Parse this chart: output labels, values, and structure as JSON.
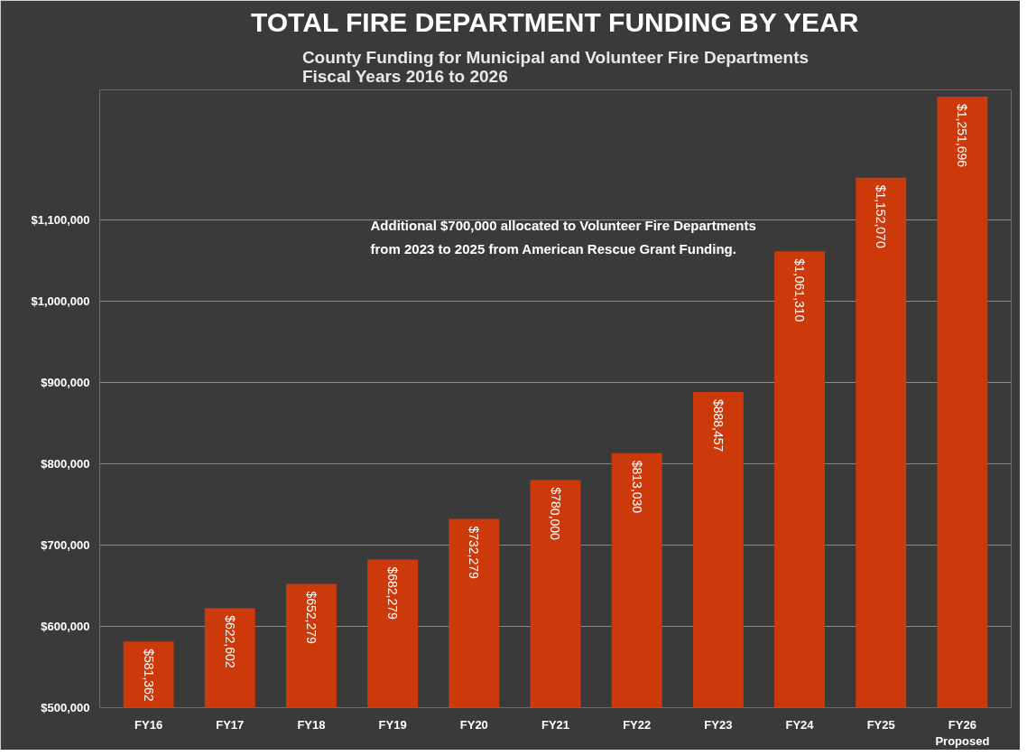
{
  "chart_data": {
    "type": "bar",
    "title": "TOTAL FIRE DEPARTMENT FUNDING BY YEAR",
    "subtitle": "County Funding for Municipal and Volunteer Fire Departments\nFiscal Years 2016 to 2026",
    "categories": [
      "FY16",
      "FY17",
      "FY18",
      "FY19",
      "FY20",
      "FY21",
      "FY22",
      "FY23",
      "FY24",
      "FY25",
      "FY26\nProposed"
    ],
    "values": [
      581362,
      622602,
      652279,
      682279,
      732279,
      780000,
      813030,
      888457,
      1061310,
      1152070,
      1251696
    ],
    "value_labels": [
      "$581,362",
      "$622,602",
      "$652,279",
      "$682,279",
      "$732,279",
      "$780,000",
      "$813,030",
      "$888,457",
      "$1,061,310",
      "$1,152,070",
      "$1,251,696"
    ],
    "color": "#cc3a0c",
    "ylim": [
      500000,
      1260000
    ],
    "yticks": [
      {
        "value": 500000,
        "label": "$500,000"
      },
      {
        "value": 600000,
        "label": "$600,000"
      },
      {
        "value": 700000,
        "label": "$700,000"
      },
      {
        "value": 800000,
        "label": "$800,000"
      },
      {
        "value": 900000,
        "label": "$900,000"
      },
      {
        "value": 1000000,
        "label": "$1,000,000"
      },
      {
        "value": 1100000,
        "label": "$1,100,000"
      }
    ],
    "grid": "y",
    "annotations": [
      "Additional $700,000 allocated to Volunteer Fire Departments\nfrom 2023 to 2025 from American Rescue Grant Funding."
    ]
  }
}
